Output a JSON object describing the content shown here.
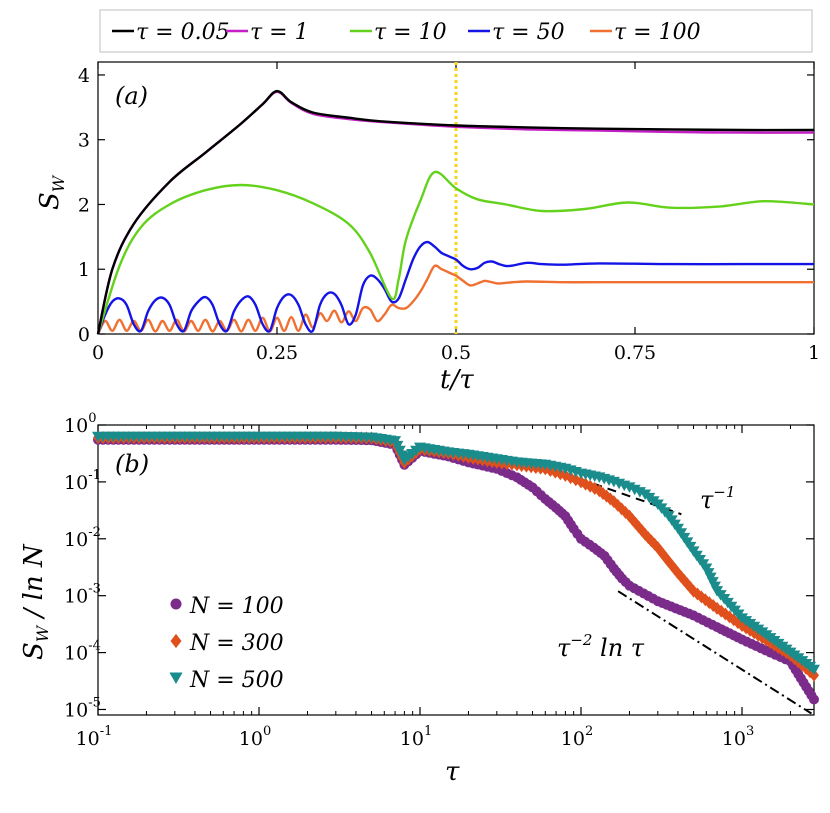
{
  "chart_data": [
    {
      "panel": "a",
      "type": "line",
      "panel_label": "(a)",
      "xlabel": "t/τ",
      "ylabel": "S_W",
      "xlim": [
        0,
        1
      ],
      "ylim": [
        0,
        4.2
      ],
      "x_ticks": [
        "0",
        "0.25",
        "0.5",
        "0.75",
        "1"
      ],
      "x_tick_values": [
        0,
        0.25,
        0.5,
        0.75,
        1
      ],
      "y_ticks": [
        "0",
        "1",
        "2",
        "3",
        "4"
      ],
      "y_tick_values": [
        0,
        1,
        2,
        3,
        4
      ],
      "vline": {
        "x": 0.5,
        "style": "dotted",
        "color": "#f2d51f"
      },
      "legend_placement": "top, outside, horizontal",
      "series": [
        {
          "name": "τ = 0.05",
          "color": "#000000",
          "x": [
            0,
            0.02,
            0.05,
            0.1,
            0.15,
            0.2,
            0.23,
            0.25,
            0.27,
            0.3,
            0.35,
            0.4,
            0.5,
            0.6,
            0.7,
            0.8,
            0.9,
            1.0
          ],
          "y": [
            0,
            1.0,
            1.7,
            2.35,
            2.8,
            3.25,
            3.55,
            3.75,
            3.58,
            3.42,
            3.34,
            3.28,
            3.22,
            3.19,
            3.17,
            3.16,
            3.15,
            3.15
          ]
        },
        {
          "name": "τ = 1",
          "color": "#c41fc4",
          "x": [
            0,
            0.02,
            0.05,
            0.1,
            0.15,
            0.2,
            0.23,
            0.25,
            0.27,
            0.3,
            0.35,
            0.4,
            0.5,
            0.6,
            0.7,
            0.8,
            0.9,
            1.0
          ],
          "y": [
            0,
            1.0,
            1.7,
            2.35,
            2.8,
            3.25,
            3.55,
            3.74,
            3.57,
            3.4,
            3.32,
            3.27,
            3.2,
            3.16,
            3.14,
            3.12,
            3.11,
            3.11
          ]
        },
        {
          "name": "τ = 10",
          "color": "#64d21c",
          "x": [
            0,
            0.03,
            0.06,
            0.1,
            0.15,
            0.2,
            0.25,
            0.3,
            0.35,
            0.38,
            0.41,
            0.42,
            0.43,
            0.45,
            0.47,
            0.5,
            0.53,
            0.57,
            0.62,
            0.68,
            0.74,
            0.8,
            0.87,
            0.93,
            1.0
          ],
          "y": [
            0,
            1.05,
            1.65,
            2.0,
            2.22,
            2.3,
            2.22,
            2.02,
            1.7,
            1.25,
            0.55,
            0.85,
            1.45,
            2.05,
            2.5,
            2.25,
            2.08,
            2.0,
            1.9,
            1.93,
            2.03,
            1.95,
            1.97,
            2.05,
            2.0
          ]
        },
        {
          "name": "τ = 50",
          "color": "#1414e6",
          "x": [
            0,
            0.01,
            0.02,
            0.03,
            0.04,
            0.05,
            0.06,
            0.07,
            0.08,
            0.09,
            0.1,
            0.11,
            0.12,
            0.13,
            0.14,
            0.15,
            0.16,
            0.17,
            0.18,
            0.19,
            0.2,
            0.21,
            0.22,
            0.23,
            0.24,
            0.25,
            0.26,
            0.27,
            0.28,
            0.29,
            0.3,
            0.31,
            0.32,
            0.33,
            0.34,
            0.35,
            0.36,
            0.37,
            0.38,
            0.39,
            0.4,
            0.41,
            0.42,
            0.43,
            0.44,
            0.45,
            0.46,
            0.47,
            0.48,
            0.49,
            0.5,
            0.51,
            0.52,
            0.53,
            0.54,
            0.55,
            0.56,
            0.57,
            0.58,
            0.6,
            0.62,
            0.65,
            0.7,
            0.8,
            0.9,
            1.0
          ],
          "y": [
            0,
            0.3,
            0.5,
            0.55,
            0.45,
            0.15,
            0.05,
            0.35,
            0.52,
            0.56,
            0.45,
            0.15,
            0.05,
            0.35,
            0.5,
            0.57,
            0.45,
            0.15,
            0.05,
            0.35,
            0.52,
            0.58,
            0.45,
            0.15,
            0.05,
            0.4,
            0.58,
            0.6,
            0.45,
            0.15,
            0.05,
            0.45,
            0.62,
            0.62,
            0.45,
            0.15,
            0.3,
            0.75,
            0.9,
            0.85,
            0.7,
            0.5,
            0.55,
            0.85,
            1.15,
            1.35,
            1.42,
            1.35,
            1.25,
            1.2,
            1.15,
            1.05,
            1.0,
            1.02,
            1.1,
            1.12,
            1.08,
            1.05,
            1.06,
            1.1,
            1.08,
            1.07,
            1.09,
            1.08,
            1.08,
            1.08
          ]
        },
        {
          "name": "τ = 100",
          "color": "#f07032",
          "x": [
            0,
            0.01,
            0.02,
            0.03,
            0.04,
            0.05,
            0.06,
            0.07,
            0.08,
            0.09,
            0.1,
            0.11,
            0.12,
            0.13,
            0.14,
            0.15,
            0.16,
            0.17,
            0.18,
            0.19,
            0.2,
            0.21,
            0.22,
            0.23,
            0.24,
            0.25,
            0.26,
            0.27,
            0.28,
            0.29,
            0.3,
            0.31,
            0.32,
            0.33,
            0.34,
            0.35,
            0.36,
            0.37,
            0.38,
            0.39,
            0.4,
            0.41,
            0.42,
            0.43,
            0.44,
            0.45,
            0.46,
            0.47,
            0.48,
            0.49,
            0.5,
            0.51,
            0.52,
            0.53,
            0.54,
            0.55,
            0.56,
            0.58,
            0.6,
            0.65,
            0.7,
            0.8,
            0.9,
            1.0
          ],
          "y": [
            0,
            0.2,
            0.05,
            0.22,
            0.05,
            0.2,
            0.05,
            0.22,
            0.04,
            0.2,
            0.05,
            0.22,
            0.04,
            0.2,
            0.05,
            0.22,
            0.04,
            0.2,
            0.05,
            0.22,
            0.04,
            0.22,
            0.05,
            0.25,
            0.04,
            0.25,
            0.05,
            0.26,
            0.05,
            0.3,
            0.1,
            0.32,
            0.2,
            0.36,
            0.18,
            0.35,
            0.2,
            0.4,
            0.38,
            0.2,
            0.3,
            0.45,
            0.4,
            0.4,
            0.5,
            0.65,
            0.85,
            1.05,
            1.0,
            0.95,
            0.9,
            0.82,
            0.75,
            0.78,
            0.82,
            0.8,
            0.78,
            0.8,
            0.81,
            0.8,
            0.8,
            0.8,
            0.8,
            0.8
          ]
        }
      ]
    },
    {
      "panel": "b",
      "type": "scatter",
      "panel_label": "(b)",
      "xlabel": "τ",
      "ylabel": "S_W / ln N",
      "xscale": "log",
      "yscale": "log",
      "xlim": [
        0.1,
        2800
      ],
      "ylim": [
        8e-06,
        1
      ],
      "x_ticks": [
        {
          "base": "10",
          "exp": "-1"
        },
        {
          "base": "10",
          "exp": "0"
        },
        {
          "base": "10",
          "exp": "1"
        },
        {
          "base": "10",
          "exp": "2"
        },
        {
          "base": "10",
          "exp": "3"
        }
      ],
      "x_tick_values": [
        0.1,
        1,
        10,
        100,
        1000
      ],
      "y_ticks": [
        {
          "base": "10",
          "exp": "-5"
        },
        {
          "base": "10",
          "exp": "-4"
        },
        {
          "base": "10",
          "exp": "-3"
        },
        {
          "base": "10",
          "exp": "-2"
        },
        {
          "base": "10",
          "exp": "-1"
        },
        {
          "base": "10",
          "exp": "0"
        }
      ],
      "y_tick_values": [
        1e-05,
        0.0001,
        0.001,
        0.01,
        0.1,
        1
      ],
      "legend_placement": "lower-left",
      "series": [
        {
          "name": "N = 100",
          "marker": "circle",
          "color": "#7b2c8b",
          "x": [
            0.1,
            0.3,
            1,
            3,
            5,
            7,
            8,
            10,
            15,
            20,
            30,
            40,
            50,
            60,
            70,
            80,
            90,
            100,
            120,
            140,
            160,
            180,
            200,
            300,
            500,
            700,
            1000,
            1500,
            2000,
            2800
          ],
          "y": [
            0.55,
            0.55,
            0.55,
            0.55,
            0.54,
            0.45,
            0.2,
            0.35,
            0.28,
            0.22,
            0.17,
            0.12,
            0.08,
            0.05,
            0.035,
            0.025,
            0.015,
            0.01,
            0.007,
            0.005,
            0.003,
            0.002,
            0.0015,
            0.0008,
            0.00045,
            0.00028,
            0.00017,
            0.0001,
            7e-05,
            1.5e-05
          ]
        },
        {
          "name": "N = 300",
          "marker": "diamond",
          "color": "#e0501c",
          "x": [
            0.1,
            0.3,
            1,
            3,
            5,
            7,
            8,
            10,
            15,
            20,
            30,
            40,
            60,
            80,
            100,
            130,
            160,
            200,
            250,
            300,
            350,
            400,
            500,
            700,
            1000,
            1500,
            2000,
            2800
          ],
          "y": [
            0.6,
            0.6,
            0.6,
            0.6,
            0.59,
            0.5,
            0.22,
            0.38,
            0.32,
            0.27,
            0.22,
            0.2,
            0.17,
            0.13,
            0.1,
            0.07,
            0.045,
            0.025,
            0.012,
            0.007,
            0.004,
            0.0025,
            0.0012,
            0.0006,
            0.0003,
            0.00015,
            9e-05,
            4e-05
          ]
        },
        {
          "name": "N = 500",
          "marker": "triangle-down",
          "color": "#1a8c8c",
          "x": [
            0.1,
            0.3,
            1,
            3,
            5,
            7,
            8,
            10,
            15,
            20,
            30,
            40,
            60,
            80,
            100,
            130,
            160,
            200,
            250,
            300,
            350,
            400,
            500,
            600,
            700,
            1000,
            1500,
            2000,
            2800
          ],
          "y": [
            0.62,
            0.62,
            0.62,
            0.62,
            0.6,
            0.52,
            0.24,
            0.4,
            0.33,
            0.3,
            0.25,
            0.22,
            0.2,
            0.17,
            0.14,
            0.12,
            0.1,
            0.08,
            0.06,
            0.04,
            0.025,
            0.015,
            0.006,
            0.003,
            0.0012,
            0.0004,
            0.00018,
            0.0001,
            5e-05
          ]
        }
      ],
      "guides": [
        {
          "label": "τ^−1",
          "style": "dashed",
          "x": [
            65,
            420
          ],
          "y": [
            0.17,
            0.027
          ]
        },
        {
          "label": "τ^−2 ln τ",
          "style": "dash-dot",
          "x": [
            170,
            2700
          ],
          "y": [
            0.0012,
            8.5e-06
          ]
        }
      ]
    }
  ],
  "text": {
    "legend_a": [
      "τ = 0.05",
      "τ = 1",
      "τ = 10",
      "τ = 50",
      "τ = 100"
    ],
    "legend_b": [
      "N = 100",
      "N = 300",
      "N = 500"
    ],
    "guide_tau_inv": "τ",
    "guide_tau_inv_exp": "−1",
    "guide_tau_log_base": "τ",
    "guide_tau_log_exp": "−2",
    "guide_tau_log_rest": " ln τ"
  }
}
